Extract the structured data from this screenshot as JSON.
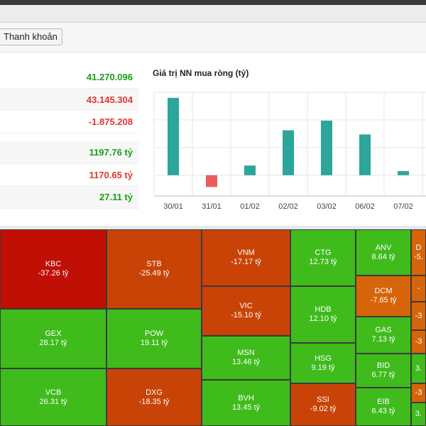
{
  "liquidity_button": "Thanh khoản",
  "stats": [
    {
      "value": "41.270.096",
      "color": "green"
    },
    {
      "value": "43.145.304",
      "color": "red"
    },
    {
      "value": "-1.875.208",
      "color": "red"
    },
    {
      "value": "1197.76 tỷ",
      "color": "green"
    },
    {
      "value": "1170.65 tỷ",
      "color": "red"
    },
    {
      "value": "27.11 tỷ",
      "color": "green"
    }
  ],
  "chart": {
    "title": "Giá trị NN mua ròng (tỷ)",
    "colors": {
      "positive": "#2ca59a",
      "negative": "#ec5b5b",
      "grid": "#e6e6e6",
      "axis": "#bbbbbb"
    }
  },
  "chart_data": {
    "type": "bar",
    "title": "Giá trị NN mua ròng (tỷ)",
    "categories": [
      "30/01",
      "31/01",
      "01/02",
      "02/02",
      "03/02",
      "06/02",
      "07/02"
    ],
    "values": [
      112,
      -17,
      14,
      65,
      79,
      59,
      6
    ],
    "ylim": [
      -30,
      120
    ],
    "grid": true
  },
  "heatmap": {
    "colors": {
      "deep_red": "#c00f05",
      "red": "#c94307",
      "orange": "#d66409",
      "green": "#3fbb1c",
      "bright_green": "#52c918"
    },
    "tiles": [
      {
        "ticker": "KBC",
        "value": "-37.26 tỷ",
        "tone": "deep_red"
      },
      {
        "ticker": "STB",
        "value": "-25.49 tỷ",
        "tone": "red"
      },
      {
        "ticker": "VNM",
        "value": "-17.17 tỷ",
        "tone": "red"
      },
      {
        "ticker": "CTG",
        "value": "12.73 tỷ",
        "tone": "green"
      },
      {
        "ticker": "ANV",
        "value": "8.64 tỷ",
        "tone": "green"
      },
      {
        "ticker": "D",
        "value": "-5.",
        "tone": "orange"
      },
      {
        "ticker": "GEX",
        "value": "28.17 tỷ",
        "tone": "green"
      },
      {
        "ticker": "POW",
        "value": "19.11 tỷ",
        "tone": "green"
      },
      {
        "ticker": "VIC",
        "value": "-15.10 tỷ",
        "tone": "red"
      },
      {
        "ticker": "HDB",
        "value": "12.10 tỷ",
        "tone": "green"
      },
      {
        "ticker": "DCM",
        "value": "-7.65 tỷ",
        "tone": "orange"
      },
      {
        "ticker": "",
        "value": "-",
        "tone": "orange"
      },
      {
        "ticker": "",
        "value": "-3",
        "tone": "orange"
      },
      {
        "ticker": "MSN",
        "value": "13.46 tỷ",
        "tone": "green"
      },
      {
        "ticker": "GAS",
        "value": "7.13 tỷ",
        "tone": "green"
      },
      {
        "ticker": "",
        "value": "-3",
        "tone": "orange"
      },
      {
        "ticker": "HSG",
        "value": "9.19 tỷ",
        "tone": "green"
      },
      {
        "ticker": "",
        "value": "3.",
        "tone": "green"
      },
      {
        "ticker": "VCB",
        "value": "26.31 tỷ",
        "tone": "green"
      },
      {
        "ticker": "DXG",
        "value": "-18.35 tỷ",
        "tone": "red"
      },
      {
        "ticker": "BID",
        "value": "6.77 tỷ",
        "tone": "green"
      },
      {
        "ticker": "",
        "value": "-3",
        "tone": "orange"
      },
      {
        "ticker": "BVH",
        "value": "13.45 tỷ",
        "tone": "green"
      },
      {
        "ticker": "SSI",
        "value": "-9.02 tỷ",
        "tone": "red"
      },
      {
        "ticker": "EIB",
        "value": "6.43 tỷ",
        "tone": "green"
      },
      {
        "ticker": "",
        "value": "3.",
        "tone": "green"
      }
    ]
  }
}
